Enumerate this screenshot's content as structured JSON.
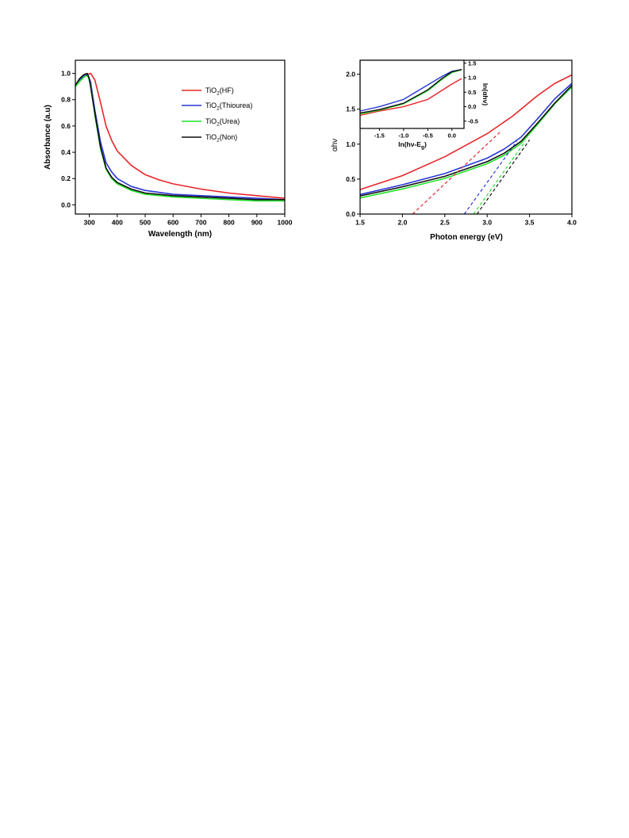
{
  "chart_data": [
    {
      "type": "line",
      "xlabel": "Wavelength (nm)",
      "ylabel": "Absorbance (a.u)",
      "xlim": [
        250,
        1000
      ],
      "ylim": [
        -0.07,
        1.1
      ],
      "xticks": [
        300,
        400,
        500,
        600,
        700,
        800,
        900,
        1000
      ],
      "yticks": [
        0.0,
        0.2,
        0.4,
        0.6,
        0.8,
        1.0
      ],
      "grid": false,
      "legend_position": "top-right",
      "series": [
        {
          "name_base": "TiO",
          "name_sub": "2",
          "name_tail": "(HF)",
          "color": "#e8262a",
          "x": [
            250,
            270,
            290,
            305,
            320,
            340,
            360,
            380,
            400,
            450,
            500,
            550,
            600,
            700,
            800,
            900,
            1000
          ],
          "y": [
            0.9,
            0.95,
            0.99,
            1.0,
            0.95,
            0.78,
            0.6,
            0.49,
            0.41,
            0.3,
            0.23,
            0.19,
            0.16,
            0.12,
            0.09,
            0.07,
            0.05
          ]
        },
        {
          "name_base": "TiO",
          "name_sub": "2",
          "name_tail": "(Thiourea)",
          "color": "#2a37d6",
          "x": [
            250,
            270,
            285,
            295,
            305,
            320,
            340,
            360,
            380,
            400,
            450,
            500,
            600,
            700,
            800,
            900,
            1000
          ],
          "y": [
            0.91,
            0.96,
            0.99,
            0.99,
            0.93,
            0.72,
            0.48,
            0.32,
            0.25,
            0.2,
            0.14,
            0.11,
            0.08,
            0.07,
            0.06,
            0.05,
            0.04
          ]
        },
        {
          "name_base": "TiO",
          "name_sub": "2",
          "name_tail": "(Urea)",
          "color": "#22e22a",
          "x": [
            250,
            270,
            285,
            295,
            305,
            320,
            340,
            360,
            380,
            400,
            450,
            500,
            600,
            700,
            800,
            900,
            1000
          ],
          "y": [
            0.9,
            0.95,
            0.98,
            0.98,
            0.91,
            0.68,
            0.43,
            0.27,
            0.2,
            0.16,
            0.11,
            0.08,
            0.06,
            0.05,
            0.04,
            0.03,
            0.03
          ]
        },
        {
          "name_base": "TiO",
          "name_sub": "2",
          "name_tail": "(Non)",
          "color": "#111111",
          "x": [
            250,
            265,
            280,
            292,
            300,
            315,
            340,
            360,
            380,
            400,
            450,
            500,
            600,
            700,
            800,
            900,
            1000
          ],
          "y": [
            0.91,
            0.96,
            0.99,
            1.0,
            0.96,
            0.76,
            0.44,
            0.28,
            0.21,
            0.17,
            0.12,
            0.09,
            0.07,
            0.06,
            0.05,
            0.04,
            0.04
          ]
        }
      ]
    },
    {
      "type": "line",
      "xlabel": "Photon energy (eV)",
      "ylabel": "αhν",
      "xlim": [
        1.5,
        4.0
      ],
      "ylim": [
        0.0,
        2.2
      ],
      "xticks": [
        1.5,
        2.0,
        2.5,
        3.0,
        3.5,
        4.0
      ],
      "xtick_labels": [
        "1.5",
        "2.0",
        "2.5",
        "3.0",
        "3.5",
        "4.0"
      ],
      "yticks": [
        0.0,
        0.5,
        1.0,
        1.5,
        2.0
      ],
      "ytick_labels": [
        "0.0",
        "0.5",
        "1.0",
        "1.5",
        "2.0"
      ],
      "grid": false,
      "series": [
        {
          "color": "#e8262a",
          "x": [
            1.5,
            2.0,
            2.5,
            3.0,
            3.3,
            3.6,
            3.8,
            4.0
          ],
          "y": [
            0.35,
            0.55,
            0.82,
            1.15,
            1.4,
            1.7,
            1.87,
            1.99
          ]
        },
        {
          "color": "#2a37d6",
          "x": [
            1.5,
            2.0,
            2.5,
            3.0,
            3.2,
            3.4,
            3.6,
            3.8,
            4.0
          ],
          "y": [
            0.28,
            0.42,
            0.58,
            0.8,
            0.93,
            1.1,
            1.37,
            1.65,
            1.87
          ]
        },
        {
          "color": "#22e22a",
          "x": [
            1.5,
            2.0,
            2.5,
            3.0,
            3.2,
            3.4,
            3.6,
            3.8,
            4.0
          ],
          "y": [
            0.23,
            0.36,
            0.51,
            0.72,
            0.84,
            1.01,
            1.29,
            1.58,
            1.82
          ]
        },
        {
          "color": "#111111",
          "x": [
            1.5,
            2.0,
            2.5,
            3.0,
            3.2,
            3.4,
            3.6,
            3.8,
            4.0
          ],
          "y": [
            0.26,
            0.39,
            0.54,
            0.75,
            0.87,
            1.04,
            1.31,
            1.59,
            1.84
          ]
        }
      ],
      "extrapolation_lines": [
        {
          "color": "#e8262a",
          "x": [
            2.12,
            3.15
          ],
          "y": [
            0.0,
            1.17
          ]
        },
        {
          "color": "#2a37d6",
          "x": [
            2.73,
            3.35
          ],
          "y": [
            0.0,
            1.04
          ]
        },
        {
          "color": "#22e22a",
          "x": [
            2.84,
            3.45
          ],
          "y": [
            0.0,
            1.04
          ]
        },
        {
          "color": "#111111",
          "x": [
            2.88,
            3.5
          ],
          "y": [
            0.0,
            1.06
          ]
        }
      ],
      "inset": {
        "xlabel_base": "ln(hν-E",
        "xlabel_sub": "g",
        "xlabel_tail": ")",
        "ylabel": "ln(αhν)",
        "xlim": [
          -1.9,
          0.25
        ],
        "ylim": [
          -0.75,
          1.6
        ],
        "xticks": [
          -1.5,
          -1.0,
          -0.5,
          0.0
        ],
        "xtick_labels": [
          "-1.5",
          "-1.0",
          "-0.5",
          "0.0"
        ],
        "yticks": [
          -0.5,
          0.0,
          0.5,
          1.0,
          1.5
        ],
        "ytick_labels": [
          "-0.5",
          "0.0",
          "0.5",
          "1.0",
          "1.5"
        ],
        "series": [
          {
            "color": "#e8262a",
            "x": [
              -1.9,
              -1.5,
              -1.0,
              -0.5,
              0.0,
              0.2
            ],
            "y": [
              -0.3,
              -0.15,
              0.0,
              0.25,
              0.78,
              0.97
            ]
          },
          {
            "color": "#2a37d6",
            "x": [
              -1.9,
              -1.5,
              -1.0,
              -0.5,
              -0.2,
              0.0,
              0.2
            ],
            "y": [
              -0.15,
              0.0,
              0.25,
              0.75,
              1.05,
              1.22,
              1.28
            ]
          },
          {
            "color": "#22e22a",
            "x": [
              -1.9,
              -1.5,
              -1.0,
              -0.5,
              -0.2,
              0.0,
              0.2
            ],
            "y": [
              -0.25,
              -0.12,
              0.1,
              0.55,
              0.95,
              1.18,
              1.27
            ]
          },
          {
            "color": "#111111",
            "x": [
              -1.9,
              -1.5,
              -1.0,
              -0.5,
              -0.2,
              0.0,
              0.2
            ],
            "y": [
              -0.22,
              -0.1,
              0.12,
              0.58,
              0.98,
              1.2,
              1.28
            ]
          }
        ]
      }
    }
  ]
}
